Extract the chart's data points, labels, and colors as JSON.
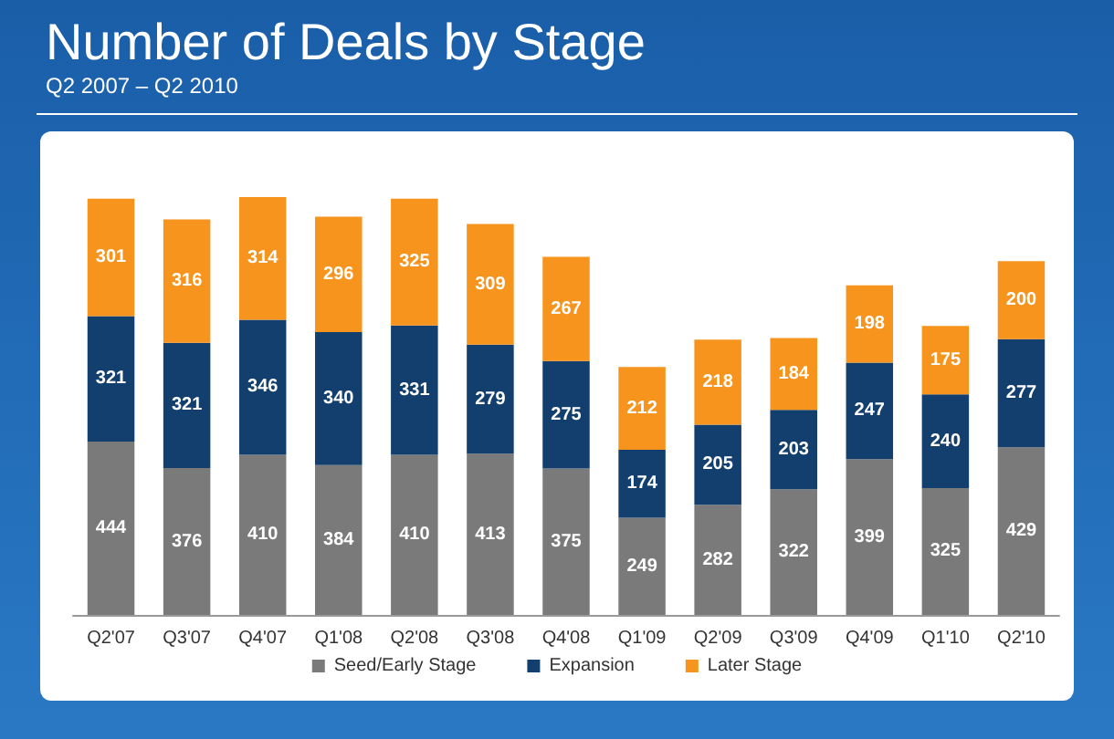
{
  "chart_data": {
    "type": "bar",
    "title": "Number of Deals by Stage",
    "subtitle": "Q2 2007 – Q2 2010",
    "categories": [
      "Q2'07",
      "Q3'07",
      "Q4'07",
      "Q1'08",
      "Q2'08",
      "Q3'08",
      "Q4'08",
      "Q1'09",
      "Q2'09",
      "Q3'09",
      "Q4'09",
      "Q1'10",
      "Q2'10"
    ],
    "stacked": true,
    "data_labels": true,
    "legend": "bottom",
    "series": [
      {
        "name": "Seed/Early Stage",
        "color": "#7a7a7a",
        "values": [
          444,
          376,
          410,
          384,
          410,
          413,
          375,
          249,
          282,
          322,
          399,
          325,
          429
        ]
      },
      {
        "name": "Expansion",
        "color": "#123f6e",
        "values": [
          321,
          321,
          346,
          340,
          331,
          279,
          275,
          174,
          205,
          203,
          247,
          240,
          277
        ]
      },
      {
        "name": "Later Stage",
        "color": "#f7941d",
        "values": [
          301,
          316,
          314,
          296,
          325,
          309,
          267,
          212,
          218,
          184,
          198,
          175,
          200
        ]
      }
    ]
  }
}
